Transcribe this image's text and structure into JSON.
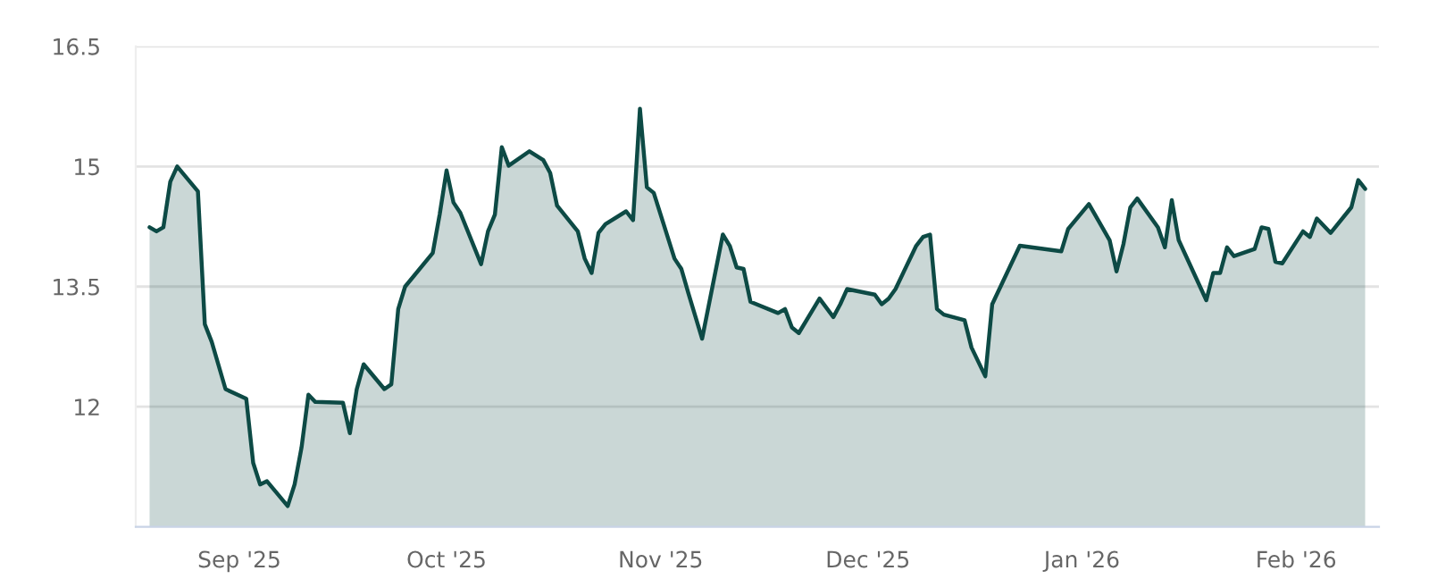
{
  "chart_data": {
    "type": "area",
    "x": [
      "2025-08-19",
      "2025-08-20",
      "2025-08-21",
      "2025-08-22",
      "2025-08-23",
      "2025-08-26",
      "2025-08-27",
      "2025-08-28",
      "2025-08-30",
      "2025-09-02",
      "2025-09-03",
      "2025-09-04",
      "2025-09-05",
      "2025-09-08",
      "2025-09-09",
      "2025-09-10",
      "2025-09-11",
      "2025-09-12",
      "2025-09-16",
      "2025-09-17",
      "2025-09-18",
      "2025-09-19",
      "2025-09-22",
      "2025-09-23",
      "2025-09-24",
      "2025-09-25",
      "2025-09-29",
      "2025-09-30",
      "2025-10-01",
      "2025-10-02",
      "2025-10-03",
      "2025-10-06",
      "2025-10-07",
      "2025-10-08",
      "2025-10-09",
      "2025-10-10",
      "2025-10-13",
      "2025-10-15",
      "2025-10-16",
      "2025-10-17",
      "2025-10-20",
      "2025-10-21",
      "2025-10-22",
      "2025-10-23",
      "2025-10-24",
      "2025-10-27",
      "2025-10-28",
      "2025-10-29",
      "2025-10-30",
      "2025-10-31",
      "2025-11-03",
      "2025-11-04",
      "2025-11-05",
      "2025-11-07",
      "2025-11-10",
      "2025-11-11",
      "2025-11-12",
      "2025-11-13",
      "2025-11-14",
      "2025-11-18",
      "2025-11-19",
      "2025-11-20",
      "2025-11-21",
      "2025-11-24",
      "2025-11-26",
      "2025-11-27",
      "2025-11-28",
      "2025-12-02",
      "2025-12-03",
      "2025-12-04",
      "2025-12-05",
      "2025-12-08",
      "2025-12-09",
      "2025-12-10",
      "2025-12-11",
      "2025-12-12",
      "2025-12-15",
      "2025-12-16",
      "2025-12-18",
      "2025-12-19",
      "2025-12-23",
      "2025-12-29",
      "2025-12-30",
      "2026-01-02",
      "2026-01-05",
      "2026-01-06",
      "2026-01-07",
      "2026-01-08",
      "2026-01-09",
      "2026-01-12",
      "2026-01-13",
      "2026-01-14",
      "2026-01-15",
      "2026-01-19",
      "2026-01-20",
      "2026-01-21",
      "2026-01-22",
      "2026-01-23",
      "2026-01-26",
      "2026-01-27",
      "2026-01-28",
      "2026-01-29",
      "2026-01-30",
      "2026-02-02",
      "2026-02-03",
      "2026-02-04",
      "2026-02-06",
      "2026-02-09",
      "2026-02-10",
      "2026-02-11"
    ],
    "series": [
      {
        "color": "#0d4a45",
        "values": [
          14.24,
          14.19,
          14.24,
          14.81,
          15.0,
          14.69,
          13.03,
          12.81,
          12.22,
          12.1,
          11.3,
          11.03,
          11.07,
          10.76,
          11.03,
          11.49,
          12.15,
          12.06,
          12.05,
          11.67,
          12.22,
          12.53,
          12.22,
          12.28,
          13.22,
          13.5,
          13.92,
          14.4,
          14.95,
          14.55,
          14.42,
          13.78,
          14.19,
          14.4,
          15.24,
          15.01,
          15.19,
          15.08,
          14.92,
          14.51,
          14.19,
          13.85,
          13.67,
          14.17,
          14.28,
          14.44,
          14.33,
          15.72,
          14.74,
          14.67,
          13.85,
          13.72,
          13.42,
          12.85,
          14.15,
          14.01,
          13.74,
          13.72,
          13.31,
          13.17,
          13.22,
          12.99,
          12.92,
          13.35,
          13.12,
          13.28,
          13.47,
          13.4,
          13.28,
          13.35,
          13.47,
          14.01,
          14.12,
          14.15,
          13.22,
          13.15,
          13.08,
          12.74,
          12.38,
          13.28,
          14.01,
          13.94,
          14.22,
          14.53,
          14.08,
          13.69,
          14.03,
          14.49,
          14.6,
          14.24,
          13.99,
          14.58,
          14.08,
          13.33,
          13.67,
          13.67,
          13.99,
          13.88,
          13.97,
          14.24,
          14.22,
          13.81,
          13.79,
          14.19,
          14.12,
          14.35,
          14.17,
          14.49,
          14.83,
          14.72
        ]
      }
    ],
    "xlim": [
      "2025-08-17",
      "2026-02-13"
    ],
    "xticks": [
      {
        "value": "2025-09-01",
        "label": "Sep '25"
      },
      {
        "value": "2025-10-01",
        "label": "Oct '25"
      },
      {
        "value": "2025-11-01",
        "label": "Nov '25"
      },
      {
        "value": "2025-12-01",
        "label": "Dec '25"
      },
      {
        "value": "2026-01-01",
        "label": "Jan '26"
      },
      {
        "value": "2026-02-01",
        "label": "Feb '26"
      }
    ],
    "ylim": [
      10.5,
      16.5
    ],
    "yticks": [
      12,
      13.5,
      15,
      16.5
    ],
    "grid": "y"
  }
}
